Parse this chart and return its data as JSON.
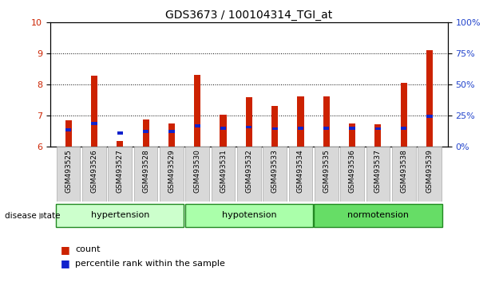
{
  "title": "GDS3673 / 100104314_TGI_at",
  "samples": [
    "GSM493525",
    "GSM493526",
    "GSM493527",
    "GSM493528",
    "GSM493529",
    "GSM493530",
    "GSM493531",
    "GSM493532",
    "GSM493533",
    "GSM493534",
    "GSM493535",
    "GSM493536",
    "GSM493537",
    "GSM493538",
    "GSM493539"
  ],
  "red_values": [
    6.85,
    8.28,
    6.18,
    6.88,
    6.75,
    8.32,
    7.02,
    7.6,
    7.32,
    7.62,
    7.62,
    6.75,
    6.72,
    8.05,
    9.12
  ],
  "blue_values": [
    6.55,
    6.75,
    6.44,
    6.5,
    6.5,
    6.68,
    6.6,
    6.63,
    6.58,
    6.6,
    6.6,
    6.6,
    6.58,
    6.6,
    6.97
  ],
  "groups": [
    {
      "label": "hypertension",
      "start": 0,
      "end": 4
    },
    {
      "label": "hypotension",
      "start": 5,
      "end": 9
    },
    {
      "label": "normotension",
      "start": 10,
      "end": 14
    }
  ],
  "group_colors": [
    "#ccffcc",
    "#aaffaa",
    "#66dd66"
  ],
  "ylim": [
    6,
    10
  ],
  "y2lim": [
    0,
    100
  ],
  "yticks": [
    6,
    7,
    8,
    9,
    10
  ],
  "y2ticks": [
    0,
    25,
    50,
    75,
    100
  ],
  "bar_width": 0.25,
  "red_color": "#cc2200",
  "blue_color": "#1122cc",
  "bg_color": "#ffffff",
  "plot_bg": "#ffffff",
  "tick_label_color_left": "#cc2200",
  "tick_label_color_right": "#2244cc",
  "legend_count": "count",
  "legend_pct": "percentile rank within the sample",
  "disease_state_label": "disease state"
}
